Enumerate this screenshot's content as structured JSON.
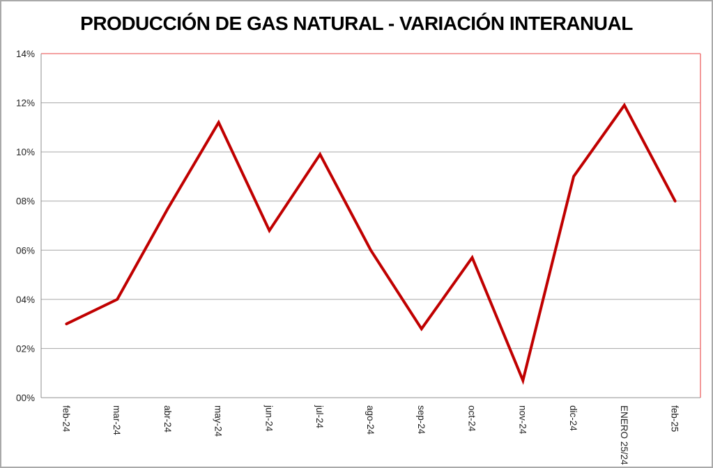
{
  "window": {
    "background_color": "#FFFFFF",
    "frame_border_color": "#A9A9A9"
  },
  "chart_data": {
    "type": "line",
    "title": "PRODUCCIÓN DE GAS NATURAL - VARIACIÓN INTERANUAL",
    "categories": [
      "feb-24",
      "mar-24",
      "abr-24",
      "may-24",
      "jun-24",
      "jul-24",
      "ago-24",
      "sep-24",
      "oct-24",
      "nov-24",
      "dic-24",
      "ENERO 25/24",
      "feb-25"
    ],
    "values": [
      3.0,
      4.0,
      7.7,
      11.2,
      6.8,
      9.9,
      6.0,
      2.8,
      5.7,
      0.7,
      9.0,
      11.9,
      8.0
    ],
    "y_tick_labels_top_to_bottom": [
      "14%",
      "12%",
      "10%",
      "08%",
      "06%",
      "04%",
      "02%",
      "00%"
    ],
    "ylim": [
      0,
      14
    ],
    "y_step": 2,
    "xlabel": "",
    "ylabel": "",
    "grid": true,
    "legend": "none",
    "line_color": "#C00000",
    "line_width": 4,
    "plot_border_color": "#F08080",
    "gridline_color": "#A6A6A6",
    "axis_line_color": "#8C8C8C",
    "tick_label_color": "#1F1F1F",
    "title_color": "#000000",
    "tick_font_size": 13.5
  }
}
